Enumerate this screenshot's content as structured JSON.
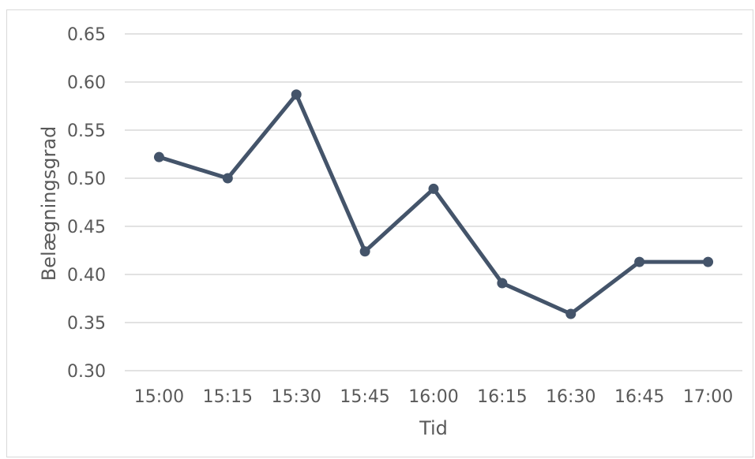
{
  "chart_data": {
    "type": "line",
    "title": "",
    "xlabel": "Tid",
    "ylabel": "Belægningsgrad",
    "ylim": [
      0.3,
      0.65
    ],
    "yticks": [
      "0.30",
      "0.35",
      "0.40",
      "0.45",
      "0.50",
      "0.55",
      "0.60",
      "0.65"
    ],
    "grid": true,
    "legend": "none",
    "categories": [
      "15:00",
      "15:15",
      "15:30",
      "15:45",
      "16:00",
      "16:15",
      "16:30",
      "16:45",
      "17:00"
    ],
    "series": [
      {
        "values": [
          0.522,
          0.5,
          0.587,
          0.424,
          0.489,
          0.391,
          0.359,
          0.413,
          0.413
        ],
        "color": "#44546a"
      }
    ]
  }
}
